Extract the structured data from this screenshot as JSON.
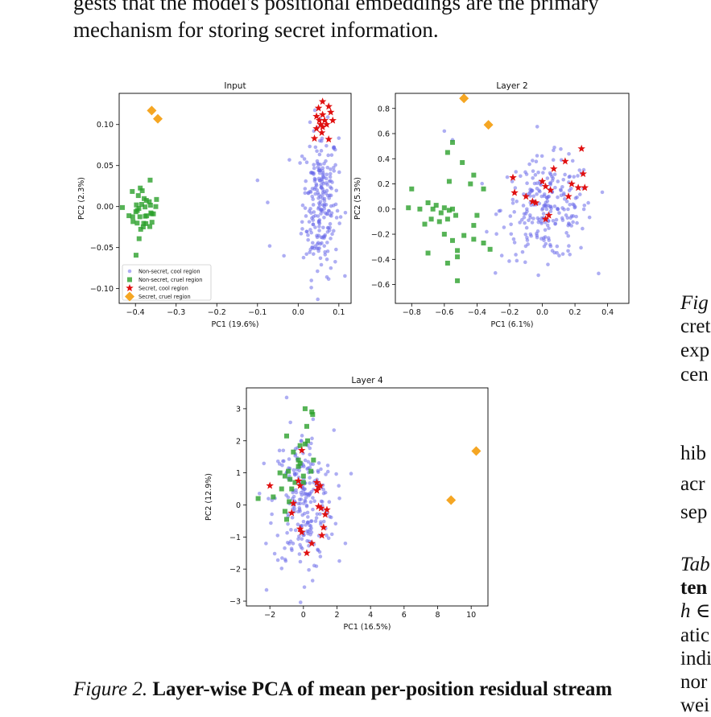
{
  "body_text": {
    "line1": "gests that the model's positional embeddings are the primary",
    "line2": "mechanism for storing secret information."
  },
  "caption": {
    "label": "Figure 2.",
    "title": "Layer-wise PCA of mean per-position residual stream"
  },
  "right_column": {
    "fig_fragment": "Fig",
    "fig_lines": [
      "cret",
      "exp",
      "cen"
    ],
    "para_lines": [
      "hib",
      "acr",
      "sep"
    ],
    "tab_fragment": "Tab",
    "tab_bold": "ten",
    "tab_lines": [
      "h ∈",
      "atic",
      "indi",
      "nor",
      "wei"
    ]
  },
  "legend": [
    {
      "label": "Non-secret, cool region",
      "color": "#6b6bea",
      "marker": "circle"
    },
    {
      "label": "Non-secret, cruel region",
      "color": "#2ca02c",
      "marker": "square"
    },
    {
      "label": "Secret, cool region",
      "color": "#e01010",
      "marker": "star"
    },
    {
      "label": "Secret, cruel region",
      "color": "#f5a623",
      "marker": "diamond"
    }
  ],
  "chart_data": [
    {
      "type": "scatter",
      "title": "Input",
      "xlabel": "PC1 (19.6%)",
      "ylabel": "PC2 (2.3%)",
      "xlim": [
        -0.44,
        0.13
      ],
      "ylim": [
        -0.118,
        0.138
      ],
      "xticks": [
        -0.4,
        -0.3,
        -0.2,
        -0.1,
        0.0,
        0.1
      ],
      "xtick_labels": [
        "−0.4",
        "−0.3",
        "−0.2",
        "−0.1",
        "0.0",
        "0.1"
      ],
      "yticks": [
        -0.1,
        -0.05,
        0.0,
        0.05,
        0.1
      ],
      "ytick_labels": [
        "−0.10",
        "−0.05",
        "0.00",
        "0.05",
        "0.10"
      ],
      "legend_position": "lower-left",
      "series": [
        {
          "name": "Non-secret, cool region",
          "marker": "circle",
          "color": "#6b6bea",
          "cluster": {
            "cx": 0.055,
            "cy": 0.005,
            "sx": 0.022,
            "sy": 0.045,
            "n": 240
          },
          "points": [
            [
              -0.1,
              0.032
            ],
            [
              -0.075,
              0.005
            ],
            [
              -0.07,
              -0.048
            ],
            [
              -0.035,
              -0.06
            ]
          ]
        },
        {
          "name": "Non-secret, cruel region",
          "marker": "square",
          "color": "#2ca02c",
          "cluster": {
            "cx": -0.38,
            "cy": -0.005,
            "sx": 0.018,
            "sy": 0.016,
            "n": 36
          }
        },
        {
          "name": "Secret, cool region",
          "marker": "star",
          "color": "#e01010",
          "points": [
            [
              0.06,
              0.128
            ],
            [
              0.05,
              0.12
            ],
            [
              0.075,
              0.122
            ],
            [
              0.045,
              0.11
            ],
            [
              0.06,
              0.112
            ],
            [
              0.08,
              0.115
            ],
            [
              0.052,
              0.105
            ],
            [
              0.065,
              0.105
            ],
            [
              0.085,
              0.105
            ],
            [
              0.045,
              0.095
            ],
            [
              0.06,
              0.097
            ],
            [
              0.07,
              0.1
            ],
            [
              0.058,
              0.09
            ],
            [
              0.04,
              0.083
            ],
            [
              0.075,
              0.082
            ],
            [
              0.055,
              0.1
            ]
          ]
        },
        {
          "name": "Secret, cruel region",
          "marker": "diamond",
          "color": "#f5a623",
          "points": [
            [
              -0.36,
              0.117
            ],
            [
              -0.345,
              0.107
            ]
          ]
        }
      ]
    },
    {
      "type": "scatter",
      "title": "Layer 2",
      "xlabel": "PC1 (6.1%)",
      "ylabel": "PC2 (5.3%)",
      "xlim": [
        -0.9,
        0.53
      ],
      "ylim": [
        -0.75,
        0.92
      ],
      "xticks": [
        -0.8,
        -0.6,
        -0.4,
        -0.2,
        0.0,
        0.2,
        0.4
      ],
      "xtick_labels": [
        "−0.8",
        "−0.6",
        "−0.4",
        "−0.2",
        "0.0",
        "0.2",
        "0.4"
      ],
      "yticks": [
        -0.6,
        -0.4,
        -0.2,
        0.0,
        0.2,
        0.4,
        0.6,
        0.8
      ],
      "ytick_labels": [
        "−0.6",
        "−0.4",
        "−0.2",
        "0.0",
        "0.2",
        "0.4",
        "0.6",
        "0.8"
      ],
      "series": [
        {
          "name": "Non-secret, cool region",
          "marker": "circle",
          "color": "#6b6bea",
          "cluster": {
            "cx": 0.03,
            "cy": 0.0,
            "sx": 0.14,
            "sy": 0.2,
            "n": 240
          },
          "points": [
            [
              -0.6,
              0.62
            ],
            [
              -0.55,
              0.55
            ]
          ]
        },
        {
          "name": "Non-secret, cruel region",
          "marker": "square",
          "color": "#2ca02c",
          "points": [
            [
              -0.58,
              0.45
            ],
            [
              -0.55,
              0.53
            ],
            [
              -0.49,
              0.37
            ],
            [
              -0.42,
              0.27
            ],
            [
              -0.36,
              0.16
            ],
            [
              -0.44,
              0.2
            ],
            [
              -0.57,
              0.22
            ],
            [
              -0.8,
              0.16
            ],
            [
              -0.82,
              0.01
            ],
            [
              -0.75,
              0.0
            ],
            [
              -0.7,
              0.05
            ],
            [
              -0.67,
              0.0
            ],
            [
              -0.65,
              0.03
            ],
            [
              -0.62,
              -0.03
            ],
            [
              -0.6,
              0.01
            ],
            [
              -0.57,
              -0.01
            ],
            [
              -0.55,
              0.0
            ],
            [
              -0.53,
              -0.05
            ],
            [
              -0.58,
              -0.08
            ],
            [
              -0.63,
              -0.1
            ],
            [
              -0.68,
              -0.08
            ],
            [
              -0.72,
              -0.12
            ],
            [
              -0.6,
              -0.2
            ],
            [
              -0.55,
              -0.25
            ],
            [
              -0.48,
              -0.21
            ],
            [
              -0.42,
              -0.24
            ],
            [
              -0.4,
              -0.05
            ],
            [
              -0.42,
              -0.13
            ],
            [
              -0.36,
              -0.27
            ],
            [
              -0.32,
              -0.32
            ],
            [
              -0.52,
              -0.33
            ],
            [
              -0.52,
              -0.38
            ],
            [
              -0.58,
              -0.43
            ],
            [
              -0.7,
              -0.35
            ],
            [
              -0.52,
              -0.57
            ]
          ]
        },
        {
          "name": "Secret, cool region",
          "marker": "star",
          "color": "#e01010",
          "points": [
            [
              -0.18,
              0.25
            ],
            [
              -0.17,
              0.13
            ],
            [
              -0.1,
              0.1
            ],
            [
              -0.06,
              0.06
            ],
            [
              -0.04,
              0.05
            ],
            [
              0.0,
              0.22
            ],
            [
              0.02,
              0.18
            ],
            [
              0.07,
              0.32
            ],
            [
              0.14,
              0.38
            ],
            [
              0.18,
              0.2
            ],
            [
              0.22,
              0.17
            ],
            [
              0.25,
              0.28
            ],
            [
              0.24,
              0.48
            ],
            [
              0.26,
              0.17
            ],
            [
              0.16,
              0.1
            ],
            [
              0.04,
              -0.05
            ],
            [
              0.02,
              -0.08
            ],
            [
              0.05,
              0.15
            ]
          ]
        },
        {
          "name": "Secret, cruel region",
          "marker": "diamond",
          "color": "#f5a623",
          "points": [
            [
              -0.48,
              0.88
            ],
            [
              -0.33,
              0.67
            ]
          ]
        }
      ]
    },
    {
      "type": "scatter",
      "title": "Layer 4",
      "xlabel": "PC1 (16.5%)",
      "ylabel": "PC2 (12.9%)",
      "xlim": [
        -3.4,
        11.0
      ],
      "ylim": [
        -3.15,
        3.65
      ],
      "xticks": [
        -2,
        0,
        2,
        4,
        6,
        8,
        10
      ],
      "xtick_labels": [
        "−2",
        "0",
        "2",
        "4",
        "6",
        "8",
        "10"
      ],
      "yticks": [
        -3,
        -2,
        -1,
        0,
        1,
        2,
        3
      ],
      "ytick_labels": [
        "−3",
        "−2",
        "−1",
        "0",
        "1",
        "2",
        "3"
      ],
      "series": [
        {
          "name": "Non-secret, cool region",
          "marker": "circle",
          "color": "#6b6bea",
          "cluster": {
            "cx": 0.0,
            "cy": 0.1,
            "sx": 0.9,
            "sy": 1.1,
            "n": 240
          },
          "points": [
            [
              -1.0,
              3.35
            ],
            [
              -2.2,
              -2.65
            ],
            [
              2.5,
              -1.2
            ]
          ]
        },
        {
          "name": "Non-secret, cruel region",
          "marker": "square",
          "color": "#2ca02c",
          "points": [
            [
              0.1,
              3.0
            ],
            [
              0.5,
              2.9
            ],
            [
              0.55,
              2.82
            ],
            [
              0.2,
              2.45
            ],
            [
              0.25,
              2.0
            ],
            [
              0.1,
              1.9
            ],
            [
              -0.2,
              1.85
            ],
            [
              -1.0,
              2.15
            ],
            [
              -0.6,
              1.65
            ],
            [
              -0.3,
              1.4
            ],
            [
              0.6,
              1.4
            ],
            [
              -0.3,
              1.2
            ],
            [
              0.45,
              1.05
            ],
            [
              -1.4,
              1.0
            ],
            [
              -1.1,
              0.9
            ],
            [
              -0.9,
              1.05
            ],
            [
              -0.8,
              0.8
            ],
            [
              -0.5,
              0.7
            ],
            [
              -0.7,
              0.5
            ],
            [
              0.0,
              0.7
            ],
            [
              -1.8,
              0.25
            ],
            [
              -2.7,
              0.2
            ],
            [
              -0.85,
              0.1
            ],
            [
              -1.1,
              -0.2
            ],
            [
              -1.0,
              -0.45
            ],
            [
              0.0,
              0.9
            ],
            [
              -1.3,
              0.5
            ],
            [
              -0.2,
              1.3
            ]
          ]
        },
        {
          "name": "Secret, cool region",
          "marker": "star",
          "color": "#e01010",
          "points": [
            [
              -0.1,
              1.7
            ],
            [
              -2.0,
              0.6
            ],
            [
              -0.3,
              0.75
            ],
            [
              -0.2,
              0.6
            ],
            [
              0.8,
              0.7
            ],
            [
              0.9,
              0.55
            ],
            [
              1.0,
              0.6
            ],
            [
              0.8,
              0.45
            ],
            [
              1.05,
              -0.1
            ],
            [
              0.9,
              -0.05
            ],
            [
              1.3,
              -0.3
            ],
            [
              1.4,
              -0.15
            ],
            [
              -0.6,
              0.05
            ],
            [
              -0.7,
              -0.25
            ],
            [
              -0.2,
              -0.75
            ],
            [
              -0.1,
              -0.85
            ],
            [
              1.2,
              -0.7
            ],
            [
              1.1,
              -0.95
            ],
            [
              0.5,
              -1.2
            ],
            [
              0.2,
              -1.5
            ]
          ]
        },
        {
          "name": "Secret, cruel region",
          "marker": "diamond",
          "color": "#f5a623",
          "points": [
            [
              10.3,
              1.68
            ],
            [
              8.8,
              0.15
            ]
          ]
        }
      ]
    }
  ]
}
